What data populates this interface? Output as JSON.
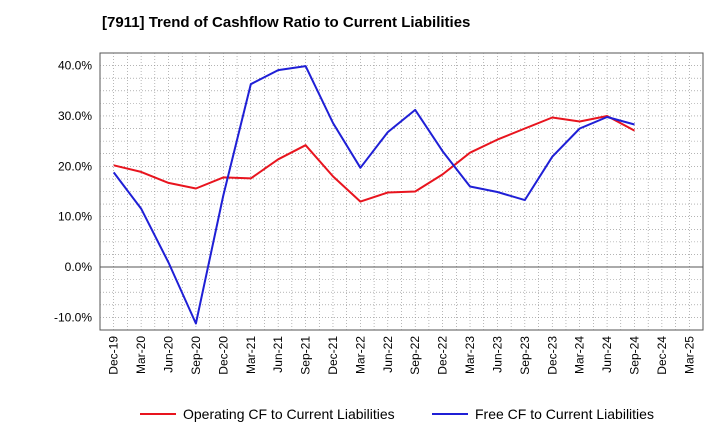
{
  "chart_data": {
    "type": "line",
    "title": "[7911]  Trend of Cashflow Ratio to Current Liabilities",
    "xlabel": "",
    "ylabel": "",
    "categories": [
      "Dec-19",
      "Mar-20",
      "Jun-20",
      "Sep-20",
      "Dec-20",
      "Mar-21",
      "Jun-21",
      "Sep-21",
      "Dec-21",
      "Mar-22",
      "Jun-22",
      "Sep-22",
      "Dec-22",
      "Mar-23",
      "Jun-23",
      "Sep-23",
      "Dec-23",
      "Mar-24",
      "Jun-24",
      "Sep-24",
      "Dec-24",
      "Mar-25"
    ],
    "ylim": [
      -12.5,
      42.5
    ],
    "yticks": [
      40,
      30,
      20,
      10,
      0,
      -10
    ],
    "ytick_labels": [
      "40.0%",
      "30.0%",
      "20.0%",
      "10.0%",
      "0.0%",
      "-10.0%"
    ],
    "grid": true,
    "legend_position": "bottom",
    "series": [
      {
        "name": "Operating CF to Current Liabilities",
        "color": "#e8141e",
        "values": [
          20.2,
          18.9,
          16.7,
          15.6,
          17.8,
          17.6,
          21.4,
          24.2,
          18.0,
          13.0,
          14.8,
          15.0,
          18.4,
          22.7,
          25.3,
          27.5,
          29.7,
          28.9,
          30.0,
          27.1,
          null,
          null
        ]
      },
      {
        "name": "Free CF to Current Liabilities",
        "color": "#1f1fd6",
        "values": [
          18.8,
          11.6,
          0.9,
          -11.2,
          14.2,
          36.3,
          39.1,
          39.9,
          28.6,
          19.7,
          26.8,
          31.2,
          23.0,
          16.0,
          14.9,
          13.3,
          21.9,
          27.5,
          29.8,
          28.3,
          null,
          null
        ]
      }
    ]
  }
}
